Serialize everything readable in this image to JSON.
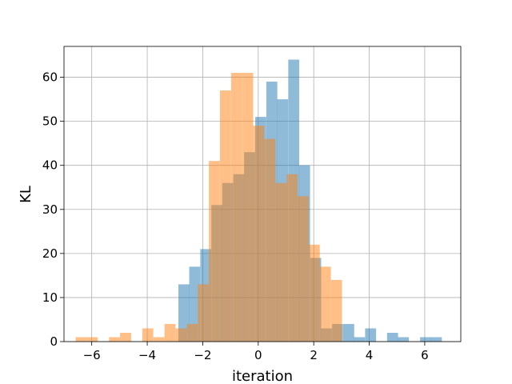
{
  "chart_data": {
    "type": "bar",
    "title": "",
    "xlabel": "iteration",
    "ylabel": "KL",
    "xlim": [
      -7.0,
      7.3
    ],
    "ylim": [
      0,
      67
    ],
    "xticks": [
      -6,
      -4,
      -2,
      0,
      2,
      4,
      6
    ],
    "yticks": [
      0,
      10,
      20,
      30,
      40,
      50,
      60
    ],
    "grid": true,
    "bin_width": 0.396,
    "series": [
      {
        "color": "#1f77b4",
        "opacity": 0.5,
        "bins": [
          {
            "x": -2.68,
            "value": 13
          },
          {
            "x": -2.29,
            "value": 17
          },
          {
            "x": -1.89,
            "value": 21
          },
          {
            "x": -1.49,
            "value": 31
          },
          {
            "x": -1.1,
            "value": 36
          },
          {
            "x": -0.7,
            "value": 38
          },
          {
            "x": -0.31,
            "value": 43
          },
          {
            "x": 0.09,
            "value": 51
          },
          {
            "x": 0.49,
            "value": 59
          },
          {
            "x": 0.88,
            "value": 55
          },
          {
            "x": 1.28,
            "value": 64
          },
          {
            "x": 1.67,
            "value": 40
          },
          {
            "x": 2.07,
            "value": 19
          },
          {
            "x": 2.46,
            "value": 3
          },
          {
            "x": 2.86,
            "value": 4
          },
          {
            "x": 3.26,
            "value": 4
          },
          {
            "x": 3.65,
            "value": 1
          },
          {
            "x": 4.05,
            "value": 3
          },
          {
            "x": 4.44,
            "value": 0
          },
          {
            "x": 4.84,
            "value": 2
          },
          {
            "x": 5.23,
            "value": 1
          },
          {
            "x": 5.63,
            "value": 0
          },
          {
            "x": 6.03,
            "value": 1
          },
          {
            "x": 6.42,
            "value": 1
          }
        ]
      },
      {
        "color": "#ff7f0e",
        "opacity": 0.5,
        "bins": [
          {
            "x": -6.38,
            "value": 1
          },
          {
            "x": -5.98,
            "value": 1
          },
          {
            "x": -5.58,
            "value": 0
          },
          {
            "x": -5.18,
            "value": 1
          },
          {
            "x": -4.78,
            "value": 2
          },
          {
            "x": -4.38,
            "value": 0
          },
          {
            "x": -3.98,
            "value": 3
          },
          {
            "x": -3.58,
            "value": 1
          },
          {
            "x": -3.18,
            "value": 4
          },
          {
            "x": -2.78,
            "value": 3
          },
          {
            "x": -2.38,
            "value": 4
          },
          {
            "x": -1.98,
            "value": 13
          },
          {
            "x": -1.58,
            "value": 41
          },
          {
            "x": -1.18,
            "value": 57
          },
          {
            "x": -0.78,
            "value": 61
          },
          {
            "x": -0.38,
            "value": 61
          },
          {
            "x": 0.02,
            "value": 49
          },
          {
            "x": 0.42,
            "value": 46
          },
          {
            "x": 0.82,
            "value": 36
          },
          {
            "x": 1.22,
            "value": 38
          },
          {
            "x": 1.62,
            "value": 33
          },
          {
            "x": 2.02,
            "value": 22
          },
          {
            "x": 2.42,
            "value": 17
          },
          {
            "x": 2.82,
            "value": 14
          }
        ]
      }
    ]
  }
}
